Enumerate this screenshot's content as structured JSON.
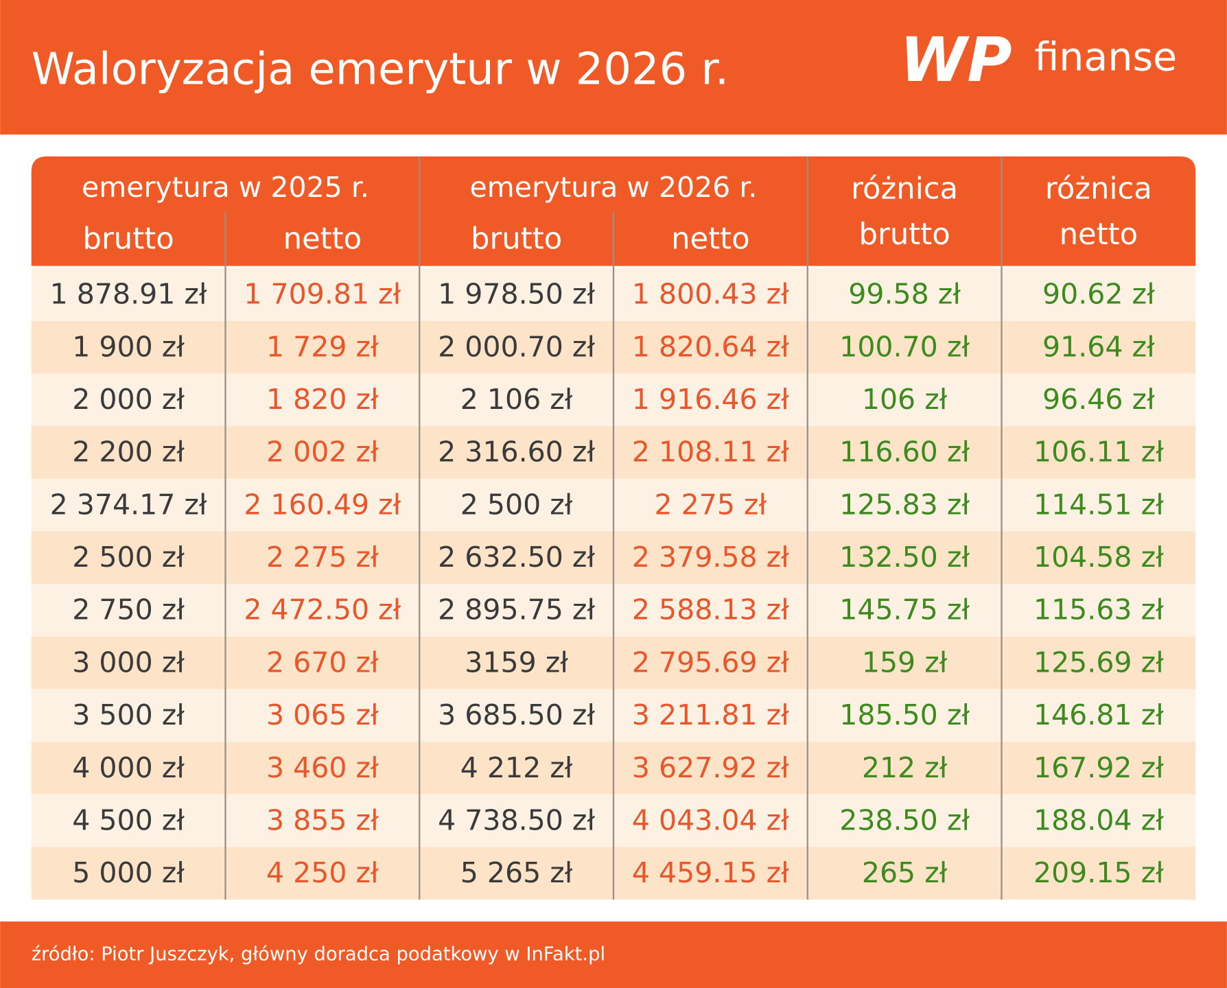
{
  "header": {
    "title": "Waloryzacja emerytur w 2026 r.",
    "logo": {
      "brand": "WP",
      "name": "finanse"
    }
  },
  "table": {
    "groups": [
      "emerytura w 2025 r.",
      "emerytura w 2026 r."
    ],
    "subheaders": [
      "brutto",
      "netto",
      "brutto",
      "netto"
    ],
    "diff_headers": [
      [
        "różnica",
        "brutto"
      ],
      [
        "różnica",
        "netto"
      ]
    ],
    "rows": [
      [
        "1 878.91 zł",
        "1 709.81 zł",
        "1 978.50 zł",
        "1 800.43 zł",
        "99.58 zł",
        "90.62 zł"
      ],
      [
        "1 900 zł",
        "1 729 zł",
        "2 000.70 zł",
        "1 820.64 zł",
        "100.70 zł",
        "91.64 zł"
      ],
      [
        "2 000 zł",
        "1 820 zł",
        "2 106 zł",
        "1 916.46 zł",
        "106 zł",
        "96.46 zł"
      ],
      [
        "2 200 zł",
        "2 002 zł",
        "2 316.60 zł",
        "2 108.11 zł",
        "116.60 zł",
        "106.11 zł"
      ],
      [
        "2 374.17 zł",
        "2 160.49 zł",
        "2 500 zł",
        "2 275 zł",
        "125.83 zł",
        "114.51 zł"
      ],
      [
        "2 500 zł",
        "2 275 zł",
        "2 632.50 zł",
        "2 379.58 zł",
        "132.50 zł",
        "104.58 zł"
      ],
      [
        "2 750 zł",
        "2 472.50 zł",
        "2 895.75 zł",
        "2 588.13 zł",
        "145.75 zł",
        "115.63 zł"
      ],
      [
        "3 000 zł",
        "2 670 zł",
        "3159 zł",
        "2 795.69 zł",
        "159 zł",
        "125.69 zł"
      ],
      [
        "3 500 zł",
        "3 065 zł",
        "3 685.50 zł",
        "3 211.81 zł",
        "185.50 zł",
        "146.81 zł"
      ],
      [
        "4 000 zł",
        "3 460 zł",
        "4 212 zł",
        "3 627.92 zł",
        "212 zł",
        "167.92 zł"
      ],
      [
        "4 500 zł",
        "3 855 zł",
        "4 738.50 zł",
        "4 043.04 zł",
        "238.50 zł",
        "188.04 zł"
      ],
      [
        "5 000 zł",
        "4 250 zł",
        "5 265 zł",
        "4 459.15 zł",
        "265 zł",
        "209.15 zł"
      ]
    ]
  },
  "footer": {
    "source": "źródło: Piotr Juszczyk, główny doradca podatkowy w InFakt.pl"
  }
}
